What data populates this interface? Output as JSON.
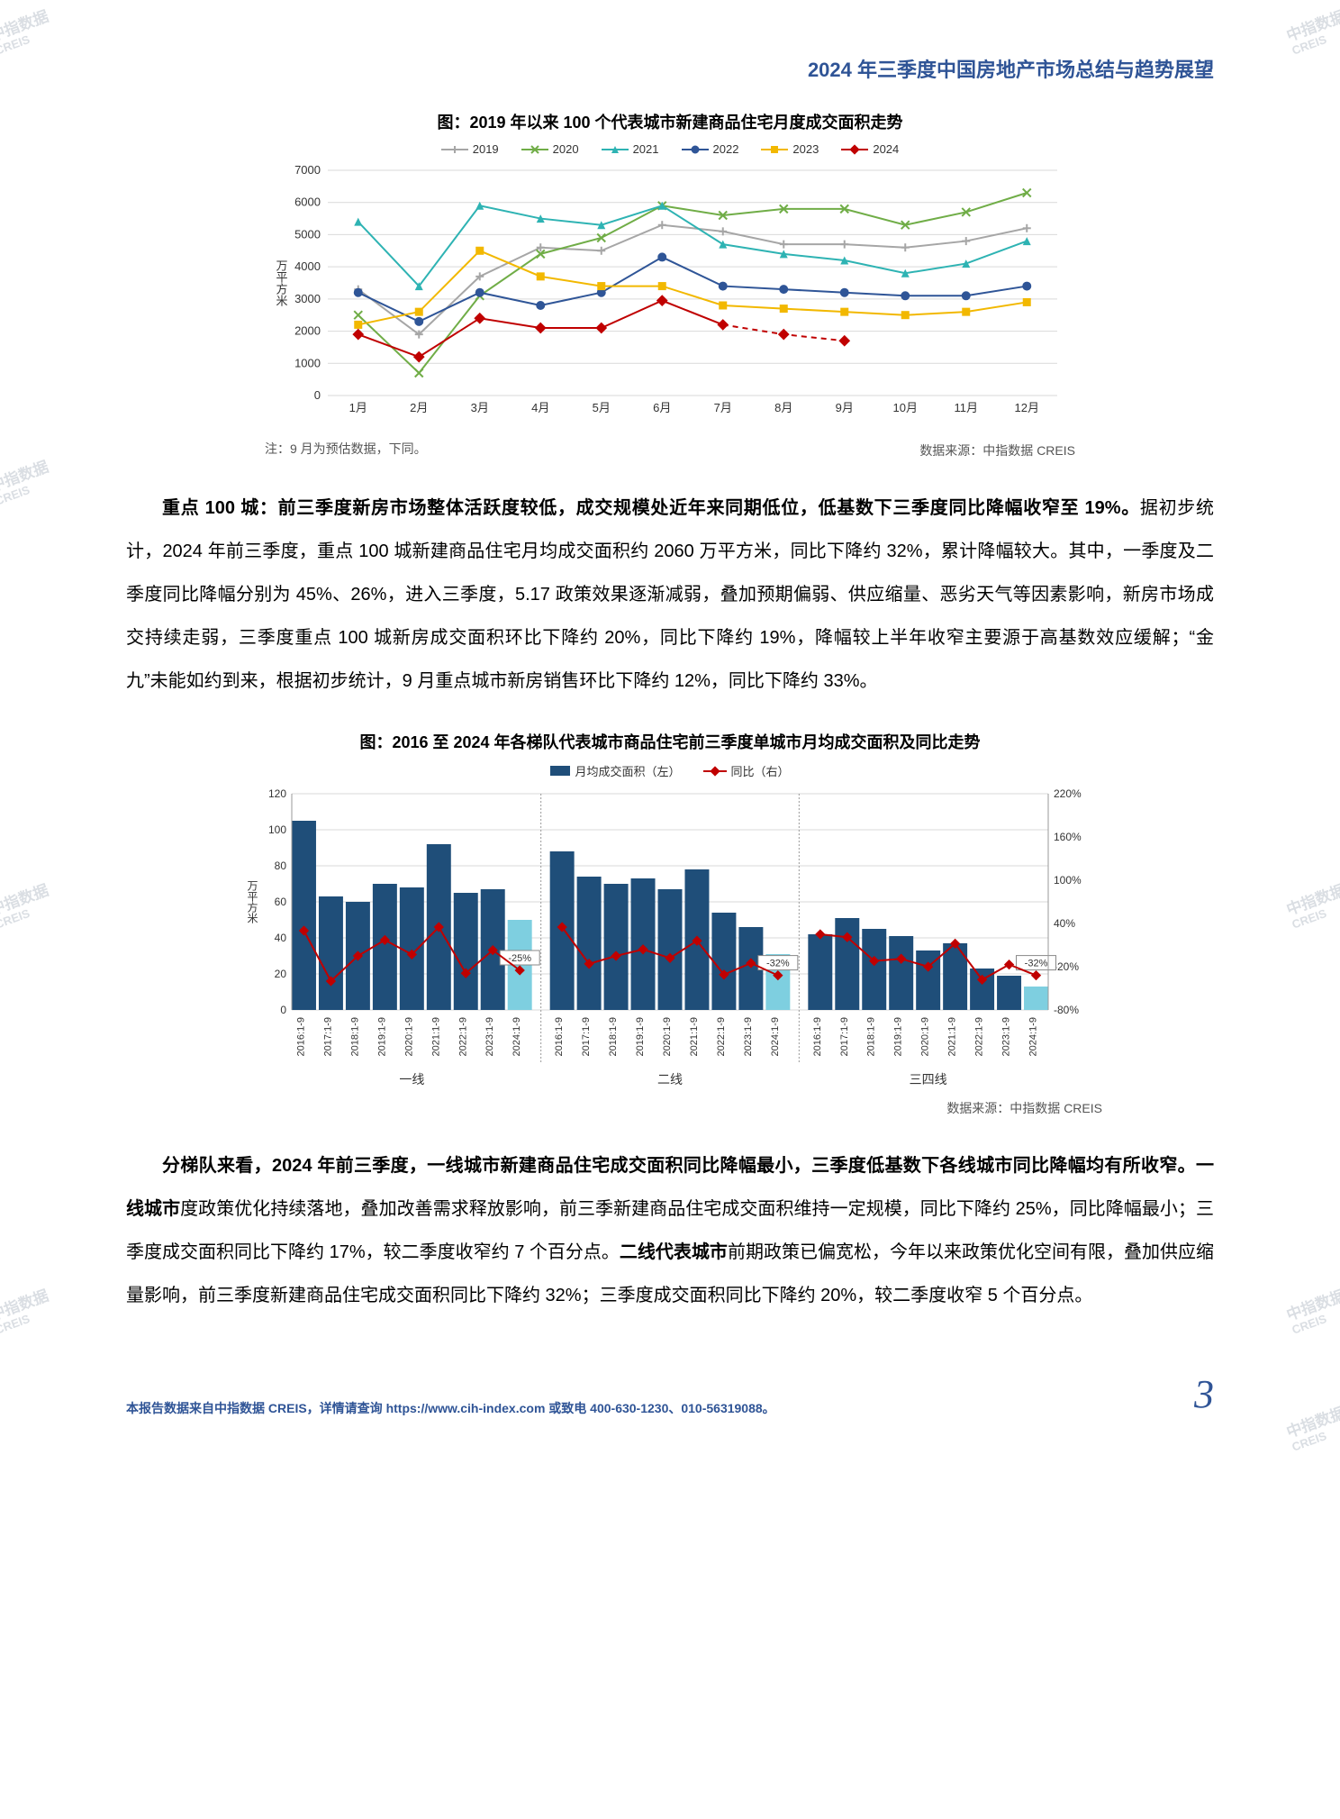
{
  "header": {
    "title": "2024 年三季度中国房地产市场总结与趋势展望"
  },
  "watermark": {
    "cn": "中指数据",
    "en": "CREIS"
  },
  "chart1": {
    "type": "line",
    "title": "图：2019 年以来 100 个代表城市新建商品住宅月度成交面积走势",
    "note": "注：9 月为预估数据，下同。",
    "source": "数据来源：中指数据 CREIS",
    "ylabel": "万平方米",
    "ylim": [
      0,
      7000
    ],
    "ytick_step": 1000,
    "categories": [
      "1月",
      "2月",
      "3月",
      "4月",
      "5月",
      "6月",
      "7月",
      "8月",
      "9月",
      "10月",
      "11月",
      "12月"
    ],
    "series": [
      {
        "name": "2019",
        "color": "#a6a6a6",
        "marker": "plus",
        "data": [
          3300,
          1900,
          3700,
          4600,
          4500,
          5300,
          5100,
          4700,
          4700,
          4600,
          4800,
          5200
        ]
      },
      {
        "name": "2020",
        "color": "#70ad47",
        "marker": "x",
        "data": [
          2500,
          700,
          3100,
          4400,
          4900,
          5900,
          5600,
          5800,
          5800,
          5300,
          5700,
          6300
        ]
      },
      {
        "name": "2021",
        "color": "#2eb3b3",
        "marker": "triangle",
        "data": [
          5400,
          3400,
          5900,
          5500,
          5300,
          5900,
          4700,
          4400,
          4200,
          3800,
          4100,
          4800
        ]
      },
      {
        "name": "2022",
        "color": "#2f5597",
        "marker": "circle",
        "data": [
          3200,
          2300,
          3200,
          2800,
          3200,
          4300,
          3400,
          3300,
          3200,
          3100,
          3100,
          3400
        ]
      },
      {
        "name": "2023",
        "color": "#f2b800",
        "marker": "square",
        "data": [
          2200,
          2600,
          4500,
          3700,
          3400,
          3400,
          2800,
          2700,
          2600,
          2500,
          2600,
          2900
        ]
      },
      {
        "name": "2024",
        "color": "#c00000",
        "marker": "diamond",
        "data": [
          1900,
          1200,
          2400,
          2100,
          2100,
          2950,
          2200,
          1900,
          1700,
          null,
          null,
          null
        ],
        "dashed_after": 7
      }
    ],
    "grid_color": "#d9d9d9",
    "background_color": "#ffffff",
    "label_fontsize": 13
  },
  "para1": {
    "lead": "重点 100 城：前三季度新房市场整体活跃度较低，成交规模处近年来同期低位，低基数下三季度同比降幅收窄至 19%。",
    "rest": "据初步统计，2024 年前三季度，重点 100 城新建商品住宅月均成交面积约 2060 万平方米，同比下降约 32%，累计降幅较大。其中，一季度及二季度同比降幅分别为 45%、26%，进入三季度，5.17 政策效果逐渐减弱，叠加预期偏弱、供应缩量、恶劣天气等因素影响，新房市场成交持续走弱，三季度重点 100 城新房成交面积环比下降约 20%，同比下降约 19%，降幅较上半年收窄主要源于高基数效应缓解；“金九”未能如约到来，根据初步统计，9 月重点城市新房销售环比下降约 12%，同比下降约 33%。"
  },
  "chart2": {
    "type": "bar-line-combo",
    "title": "图：2016 至 2024 年各梯队代表城市商品住宅前三季度单城市月均成交面积及同比走势",
    "source": "数据来源：中指数据 CREIS",
    "ylabel_left": "万平方米",
    "ylim_left": [
      0,
      120
    ],
    "ytick_left": 20,
    "ylim_right": [
      -80,
      220
    ],
    "ytick_right": 60,
    "ylabel_right_suffix": "%",
    "legend_bar": "月均成交面积（左）",
    "legend_line": "同比（右）",
    "bar_color": "#1f4e79",
    "bar_highlight_color": "#7ecfe0",
    "line_color": "#c00000",
    "groups": [
      "一线",
      "二线",
      "三四线"
    ],
    "years": [
      "2016:1-9",
      "2017:1-9",
      "2018:1-9",
      "2019:1-9",
      "2020:1-9",
      "2021:1-9",
      "2022:1-9",
      "2023:1-9",
      "2024:1-9"
    ],
    "bars": {
      "一线": [
        105,
        63,
        60,
        70,
        68,
        92,
        65,
        67,
        50
      ],
      "二线": [
        88,
        74,
        70,
        73,
        67,
        78,
        54,
        46,
        31
      ],
      "三四线": [
        42,
        51,
        45,
        41,
        33,
        37,
        23,
        19,
        13
      ]
    },
    "line_yoy": {
      "一线": [
        30,
        -40,
        -5,
        17,
        -3,
        35,
        -29,
        3,
        -25
      ],
      "二线": [
        35,
        -16,
        -5,
        4,
        -8,
        16,
        -31,
        -15,
        -32
      ],
      "三四线": [
        25,
        21,
        -12,
        -9,
        -20,
        12,
        -38,
        -17,
        -32
      ]
    },
    "callouts": {
      "一线": "-25%",
      "二线": "-32%",
      "三四线": "-32%"
    },
    "grid_color": "#d9d9d9",
    "label_fontsize": 12
  },
  "para2": {
    "lead": "分梯队来看，2024 年前三季度，一线城市新建商品住宅成交面积同比降幅最小，三季度低基数下各线城市同比降幅均有所收窄。一线城市",
    "mid1": "度政策优化持续落地，叠加改善需求释放影响，前三季新建商品住宅成交面积维持一定规模，同比下降约 25%，同比降幅最小；三季度成交面积同比下降约 17%，较二季度收窄约 7 个百分点。",
    "bold2": "二线代表城市",
    "mid2": "前期政策已偏宽松，今年以来政策优化空间有限，叠加供应缩量影响，前三季度新建商品住宅成交面积同比下降约 32%；三季度成交面积同比下降约 20%，较二季度收窄 5 个百分点。"
  },
  "footer": {
    "text": "本报告数据来自中指数据 CREIS，详情请查询 https://www.cih-index.com 或致电 400-630-1230、010-56319088。",
    "page": "3"
  }
}
